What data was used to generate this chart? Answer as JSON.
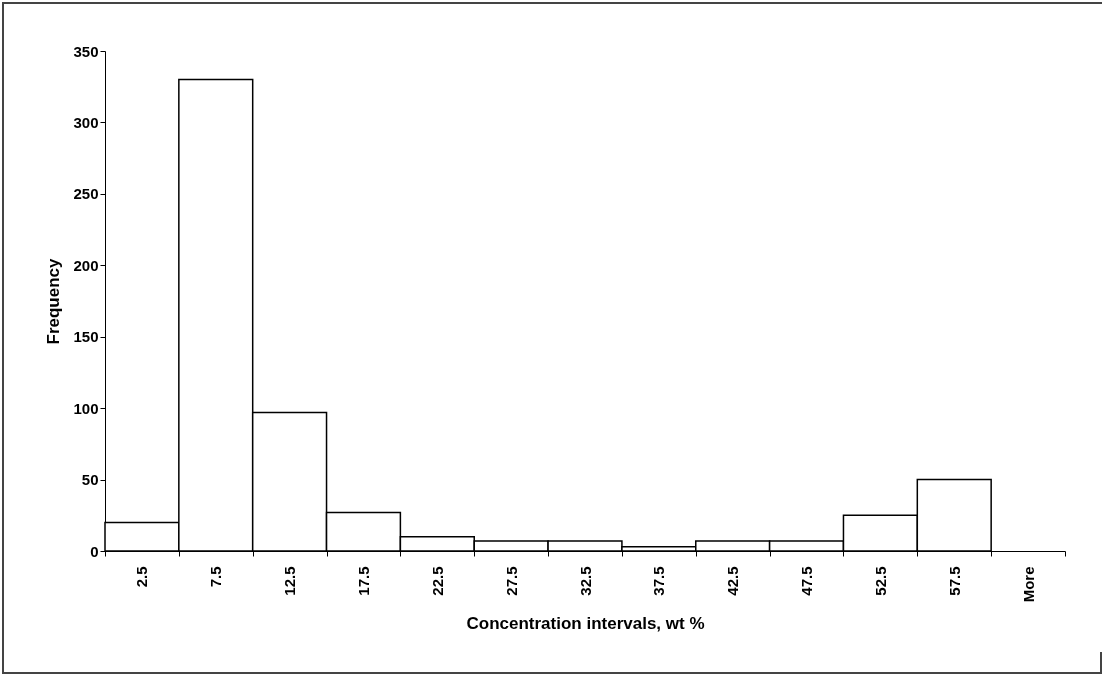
{
  "chart_data": {
    "type": "bar",
    "xlabel": "Concentration intervals, wt %",
    "ylabel": "Frequency",
    "categories": [
      "2.5",
      "7.5",
      "12.5",
      "17.5",
      "22.5",
      "27.5",
      "32.5",
      "37.5",
      "42.5",
      "47.5",
      "52.5",
      "57.5",
      "More"
    ],
    "values": [
      20,
      330,
      97,
      27,
      10,
      7,
      7,
      3,
      7,
      7,
      25,
      50,
      0
    ],
    "color": "#ffffff",
    "ylim": [
      0,
      350
    ],
    "yticks": [
      0,
      50,
      100,
      150,
      200,
      250,
      300,
      350
    ],
    "grid": false
  }
}
